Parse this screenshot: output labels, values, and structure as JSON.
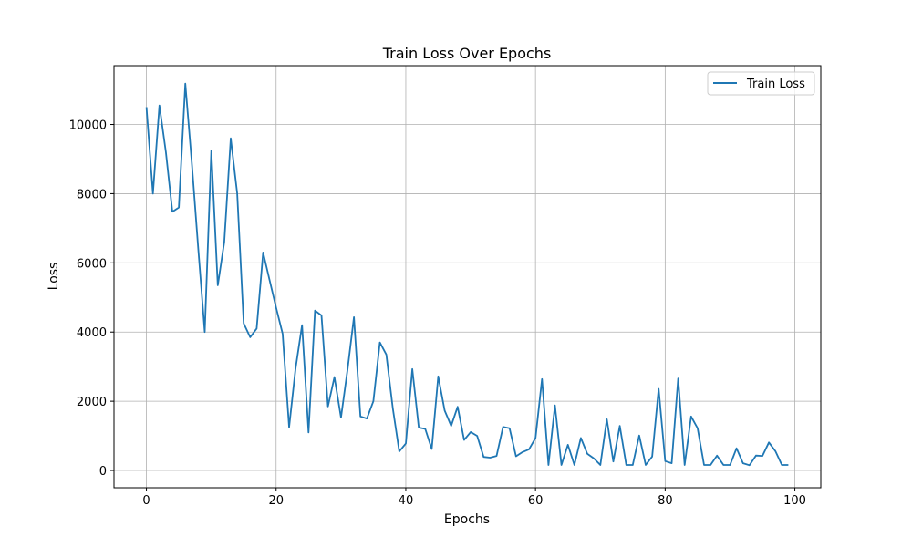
{
  "chart_data": {
    "type": "line",
    "title": "Train Loss Over Epochs",
    "xlabel": "Epochs",
    "ylabel": "Loss",
    "xlim": [
      -5,
      104
    ],
    "ylim": [
      -500,
      11700
    ],
    "xticks": [
      0,
      20,
      40,
      60,
      80,
      100
    ],
    "yticks": [
      0,
      2000,
      4000,
      6000,
      8000,
      10000
    ],
    "grid": true,
    "legend_position": "top-right",
    "series": [
      {
        "name": "Train Loss",
        "color": "#1f77b4",
        "x": [
          0,
          1,
          2,
          3,
          4,
          5,
          6,
          7,
          8,
          9,
          10,
          11,
          12,
          13,
          14,
          15,
          16,
          17,
          18,
          19,
          20,
          21,
          22,
          23,
          24,
          25,
          26,
          27,
          28,
          29,
          30,
          31,
          32,
          33,
          34,
          35,
          36,
          37,
          38,
          39,
          40,
          41,
          42,
          43,
          44,
          45,
          46,
          47,
          48,
          49,
          50,
          51,
          52,
          53,
          54,
          55,
          56,
          57,
          58,
          59,
          60,
          61,
          62,
          63,
          64,
          65,
          66,
          67,
          68,
          69,
          70,
          71,
          72,
          73,
          74,
          75,
          76,
          77,
          78,
          79,
          80,
          81,
          82,
          83,
          84,
          85,
          86,
          87,
          88,
          89,
          90,
          91,
          92,
          93,
          94,
          95,
          96,
          97,
          98,
          99
        ],
        "values": [
          10500,
          8000,
          10550,
          9200,
          7480,
          7600,
          11180,
          8900,
          6400,
          4000,
          9250,
          5350,
          6600,
          9600,
          8000,
          4250,
          3850,
          4100,
          6300,
          5500,
          4700,
          3950,
          1250,
          2950,
          4200,
          1100,
          4620,
          4480,
          1850,
          2700,
          1530,
          2900,
          4430,
          1560,
          1500,
          2000,
          3700,
          3350,
          1800,
          550,
          780,
          2930,
          1240,
          1200,
          620,
          2720,
          1730,
          1290,
          1840,
          880,
          1110,
          1000,
          390,
          370,
          420,
          1260,
          1220,
          410,
          530,
          610,
          940,
          2640,
          160,
          1880,
          160,
          740,
          160,
          940,
          480,
          350,
          160,
          1480,
          260,
          1290,
          160,
          160,
          1010,
          160,
          400,
          2360,
          270,
          210,
          2660,
          160,
          1560,
          1220,
          160,
          160,
          430,
          160,
          160,
          640,
          210,
          150,
          430,
          420,
          810,
          560,
          160,
          160
        ]
      }
    ]
  }
}
